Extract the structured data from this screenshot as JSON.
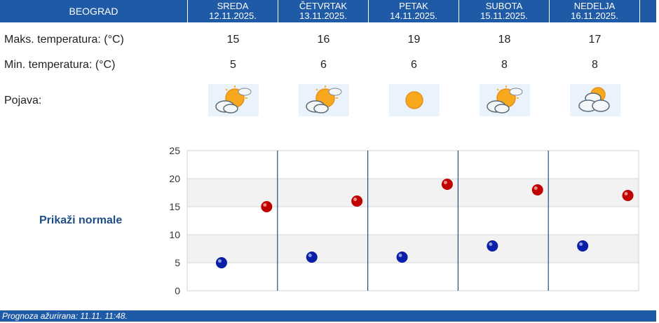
{
  "header": {
    "city": "BEOGRAD",
    "days": [
      {
        "name": "SREDA",
        "date": "12.11.2025."
      },
      {
        "name": "ČETVRTAK",
        "date": "13.11.2025."
      },
      {
        "name": "PETAK",
        "date": "14.11.2025."
      },
      {
        "name": "SUBOTA",
        "date": "15.11.2025."
      },
      {
        "name": "NEDELJA",
        "date": "16.11.2025."
      }
    ]
  },
  "rows": {
    "max_label": "Maks. temperatura: (°C)",
    "min_label": "Min. temperatura: (°C)",
    "phenomena_label": "Pojava:",
    "max_values": [
      "15",
      "16",
      "19",
      "18",
      "17"
    ],
    "min_values": [
      "5",
      "6",
      "6",
      "8",
      "8"
    ],
    "icons": [
      "partly-sunny-cloud-icon",
      "partly-sunny-cloud-icon",
      "sun-icon",
      "partly-sunny-cloud-icon",
      "mostly-cloudy-icon"
    ]
  },
  "normals_link": "Prikaži normale",
  "footer": "Prognoza ažurirana:  11.11. 11:48.",
  "colors": {
    "header": "#1f5aa6",
    "max_dot": "#c00000",
    "min_dot": "#0a1fa8"
  },
  "chart_data": {
    "type": "scatter",
    "ylim": [
      0,
      25
    ],
    "yticks": [
      "0",
      "5",
      "10",
      "15",
      "20",
      "25"
    ],
    "grid": true,
    "categories": [
      "SREDA",
      "ČETVRTAK",
      "PETAK",
      "SUBOTA",
      "NEDELJA"
    ],
    "series": [
      {
        "values": [
          15,
          16,
          19,
          18,
          17
        ],
        "color": "#c00000"
      },
      {
        "values": [
          5,
          6,
          6,
          8,
          8
        ],
        "color": "#0a1fa8"
      }
    ]
  }
}
